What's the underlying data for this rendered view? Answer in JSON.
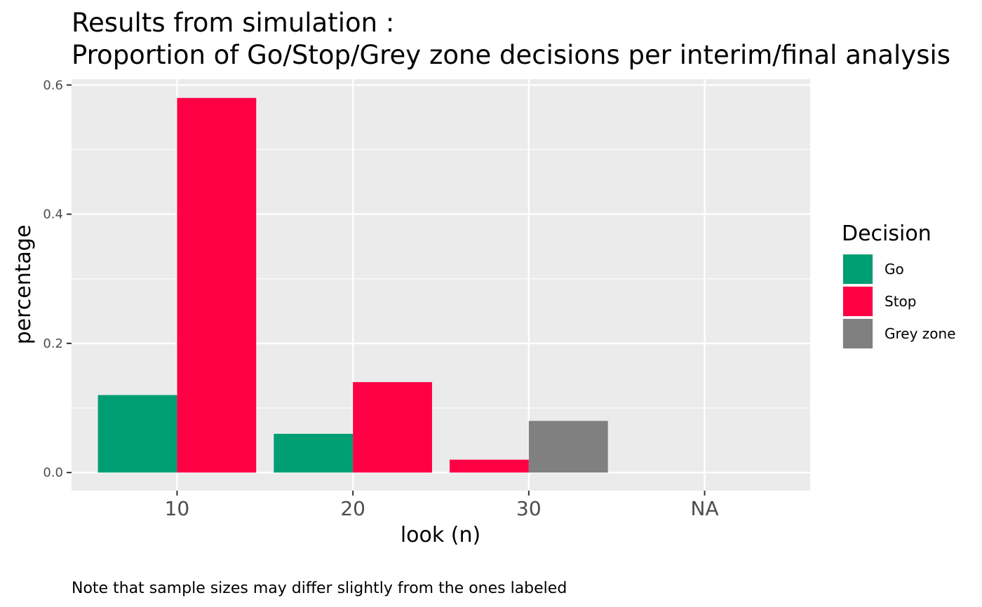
{
  "chart_data": {
    "type": "bar",
    "title_lines": [
      "Results from simulation :",
      "Proportion of Go/Stop/Grey zone decisions per interim/final analysis"
    ],
    "xlabel": "look (n)",
    "ylabel": "percentage",
    "categories": [
      "10",
      "20",
      "30",
      "NA"
    ],
    "ylim": [
      -0.028,
      0.609
    ],
    "yticks": [
      0.0,
      0.2,
      0.4,
      0.6
    ],
    "ytick_labels": [
      "0.0",
      "0.2",
      "0.4",
      "0.6"
    ],
    "grid": true,
    "legend_title": "Decision",
    "legend_position": "right",
    "series": [
      {
        "name": "Go",
        "color": "#009E73",
        "values": [
          0.12,
          0.06,
          null,
          null
        ]
      },
      {
        "name": "Stop",
        "color": "#FF0044",
        "values": [
          0.58,
          0.14,
          0.02,
          null
        ]
      },
      {
        "name": "Grey zone",
        "color": "#808080",
        "values": [
          null,
          null,
          0.08,
          null
        ]
      }
    ],
    "caption": "Note that sample sizes may differ slightly from the ones labeled"
  }
}
